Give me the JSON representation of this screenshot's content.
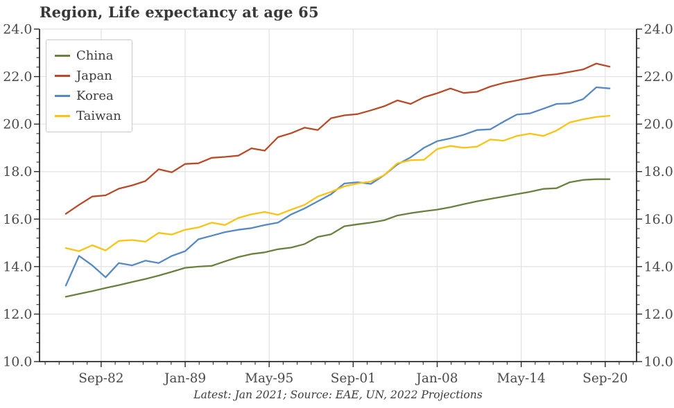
{
  "chart_data": {
    "type": "line",
    "title": "Region, Life expectancy at age 65",
    "caption": "Latest: Jan 2021; Source: EAE, UN, 2022 Projections",
    "grid": true,
    "legend_position": "upper-left",
    "xlim": [
      1978.02,
      2023.03
    ],
    "ylim": [
      10,
      24
    ],
    "yticks": [
      10,
      12,
      14,
      16,
      18,
      20,
      22,
      24
    ],
    "ytick_labels": [
      "10.0",
      "12.0",
      "14.0",
      "16.0",
      "18.0",
      "20.0",
      "22.0",
      "24.0"
    ],
    "ytick_sides": "both",
    "y_minor_step": 0.4,
    "xticks": [
      {
        "label": "Sep-82",
        "t": 1982.667
      },
      {
        "label": "Jan-89",
        "t": 1989.0
      },
      {
        "label": "May-95",
        "t": 1995.333
      },
      {
        "label": "Sep-01",
        "t": 2001.667
      },
      {
        "label": "Jan-08",
        "t": 2008.0
      },
      {
        "label": "May-14",
        "t": 2014.333
      },
      {
        "label": "Sep-20",
        "t": 2020.667
      }
    ],
    "x_minor_divisions": 6,
    "x": [
      1980,
      1981,
      1982,
      1983,
      1984,
      1985,
      1986,
      1987,
      1988,
      1989,
      1990,
      1991,
      1992,
      1993,
      1994,
      1995,
      1996,
      1997,
      1998,
      1999,
      2000,
      2001,
      2002,
      2003,
      2004,
      2005,
      2006,
      2007,
      2008,
      2009,
      2010,
      2011,
      2012,
      2013,
      2014,
      2015,
      2016,
      2017,
      2018,
      2019,
      2020,
      2021
    ],
    "series": [
      {
        "name": "China",
        "color": "#6A803D",
        "values": [
          12.73,
          12.85,
          12.97,
          13.1,
          13.22,
          13.35,
          13.48,
          13.62,
          13.78,
          13.95,
          14.0,
          14.03,
          14.22,
          14.4,
          14.53,
          14.6,
          14.73,
          14.8,
          14.95,
          15.25,
          15.36,
          15.7,
          15.78,
          15.85,
          15.95,
          16.15,
          16.25,
          16.33,
          16.4,
          16.5,
          16.63,
          16.75,
          16.85,
          16.95,
          17.05,
          17.15,
          17.27,
          17.3,
          17.55,
          17.65,
          17.68,
          17.68
        ]
      },
      {
        "name": "Japan",
        "color": "#B94A28",
        "values": [
          16.22,
          16.6,
          16.95,
          17.0,
          17.28,
          17.42,
          17.6,
          18.1,
          17.97,
          18.32,
          18.35,
          18.58,
          18.62,
          18.67,
          18.98,
          18.88,
          19.45,
          19.62,
          19.85,
          19.75,
          20.25,
          20.37,
          20.42,
          20.58,
          20.75,
          21.0,
          20.85,
          21.13,
          21.3,
          21.5,
          21.31,
          21.36,
          21.58,
          21.73,
          21.84,
          21.95,
          22.05,
          22.1,
          22.2,
          22.3,
          22.55,
          22.42
        ]
      },
      {
        "name": "Korea",
        "color": "#5589C4",
        "values": [
          13.2,
          14.45,
          14.05,
          13.55,
          14.15,
          14.05,
          14.25,
          14.15,
          14.45,
          14.65,
          15.15,
          15.3,
          15.45,
          15.55,
          15.62,
          15.75,
          15.85,
          16.2,
          16.45,
          16.75,
          17.05,
          17.5,
          17.55,
          17.48,
          17.85,
          18.3,
          18.6,
          19.0,
          19.28,
          19.4,
          19.55,
          19.75,
          19.78,
          20.1,
          20.4,
          20.45,
          20.65,
          20.85,
          20.87,
          21.05,
          21.55,
          21.5
        ]
      },
      {
        "name": "Taiwan",
        "color": "#FBC311",
        "values": [
          14.78,
          14.65,
          14.9,
          14.68,
          15.08,
          15.12,
          15.05,
          15.42,
          15.35,
          15.55,
          15.65,
          15.85,
          15.75,
          16.05,
          16.2,
          16.3,
          16.18,
          16.4,
          16.6,
          16.95,
          17.15,
          17.38,
          17.5,
          17.58,
          17.85,
          18.35,
          18.48,
          18.5,
          18.95,
          19.08,
          19.0,
          19.05,
          19.35,
          19.3,
          19.5,
          19.6,
          19.5,
          19.73,
          20.07,
          20.2,
          20.3,
          20.35
        ]
      }
    ],
    "style": {
      "grid_color": "#e2e2e2",
      "spine_color": "#2a2a2a",
      "tick_label_color": "#4a4a4a",
      "line_width": 2.3
    }
  }
}
